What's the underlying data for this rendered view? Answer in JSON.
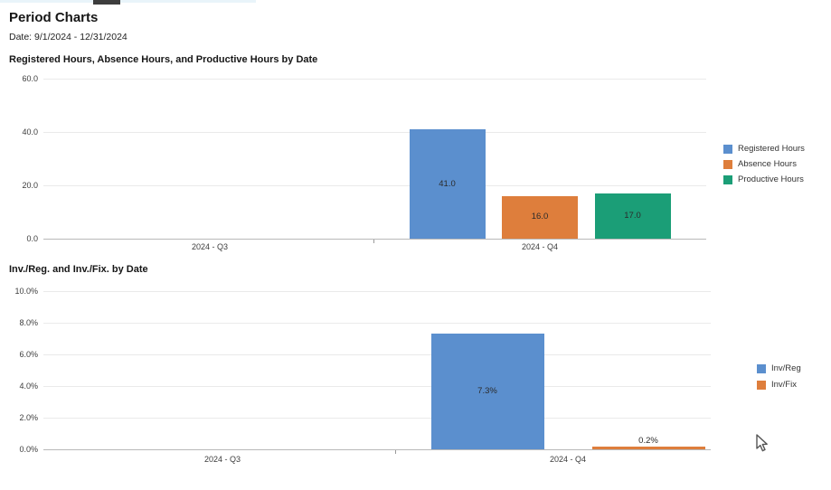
{
  "page": {
    "title": "Period Charts",
    "date_range": "Date: 9/1/2024 - 12/31/2024"
  },
  "chart_data": [
    {
      "type": "bar",
      "title": "Registered Hours, Absence Hours, and Productive Hours by Date",
      "categories": [
        "2024 - Q3",
        "2024 - Q4"
      ],
      "series": [
        {
          "name": "Registered Hours",
          "color": "#5B8FCE",
          "values": [
            null,
            41.0
          ],
          "value_labels": [
            null,
            "41.0"
          ]
        },
        {
          "name": "Absence Hours",
          "color": "#DE7E3C",
          "values": [
            null,
            16.0
          ],
          "value_labels": [
            null,
            "16.0"
          ]
        },
        {
          "name": "Productive Hours",
          "color": "#1B9E77",
          "values": [
            null,
            17.0
          ],
          "value_labels": [
            null,
            "17.0"
          ]
        }
      ],
      "ylim": [
        0,
        60
      ],
      "y_ticks": [
        {
          "label": "0.0",
          "value": 0
        },
        {
          "label": "20.0",
          "value": 20
        },
        {
          "label": "40.0",
          "value": 40
        },
        {
          "label": "60.0",
          "value": 60
        }
      ],
      "xlabel": "",
      "ylabel": "",
      "grid": true,
      "legend_position": "right"
    },
    {
      "type": "bar",
      "title": "Inv./Reg. and Inv./Fix. by Date",
      "categories": [
        "2024 - Q3",
        "2024 - Q4"
      ],
      "series": [
        {
          "name": "Inv/Reg",
          "color": "#5B8FCE",
          "values": [
            null,
            7.3
          ],
          "value_labels": [
            null,
            "7.3%"
          ]
        },
        {
          "name": "Inv/Fix",
          "color": "#DE7E3C",
          "values": [
            null,
            0.2
          ],
          "value_labels": [
            null,
            "0.2%"
          ]
        }
      ],
      "ylim": [
        0,
        10
      ],
      "y_ticks": [
        {
          "label": "0.0%",
          "value": 0
        },
        {
          "label": "2.0%",
          "value": 2
        },
        {
          "label": "4.0%",
          "value": 4
        },
        {
          "label": "6.0%",
          "value": 6
        },
        {
          "label": "8.0%",
          "value": 8
        },
        {
          "label": "10.0%",
          "value": 10
        }
      ],
      "xlabel": "",
      "ylabel": "",
      "grid": true,
      "legend_position": "right"
    }
  ]
}
